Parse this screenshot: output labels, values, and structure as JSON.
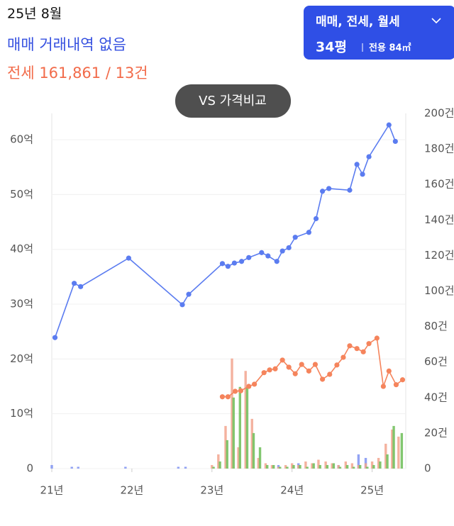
{
  "header": {
    "month": "25년 8월",
    "sale": "매매 거래내역 없음",
    "jeonse": "전세 161,861 / 13건"
  },
  "filter": {
    "types": "매매, 전세, 월세",
    "size": "34평",
    "area": "전용 84㎡"
  },
  "compare_button": "VS 가격비교",
  "chart_data": {
    "type": "line",
    "grid": true,
    "xlim": [
      2021,
      2025.42
    ],
    "xticks": [
      {
        "value": 2021,
        "label": "21년"
      },
      {
        "value": 2022,
        "label": "22년"
      },
      {
        "value": 2023,
        "label": "23년"
      },
      {
        "value": 2024,
        "label": "24년"
      },
      {
        "value": 2025,
        "label": "25년"
      }
    ],
    "ylim": [
      0,
      64.8
    ],
    "yticks": [
      0,
      {
        "value": 10,
        "label": "10억"
      },
      {
        "value": 20,
        "label": "20억"
      },
      {
        "value": 30,
        "label": "30억"
      },
      {
        "value": 40,
        "label": "40억"
      },
      {
        "value": 50,
        "label": "50억"
      },
      {
        "value": 60,
        "label": "60억"
      }
    ],
    "y2lim": [
      0,
      200
    ],
    "y2ticks": [
      0,
      {
        "value": 20,
        "label": "20건"
      },
      {
        "value": 40,
        "label": "40건"
      },
      {
        "value": 60,
        "label": "60건"
      },
      {
        "value": 80,
        "label": "80건"
      },
      {
        "value": 100,
        "label": "100건"
      },
      {
        "value": 120,
        "label": "120건"
      },
      {
        "value": 140,
        "label": "140건"
      },
      {
        "value": 160,
        "label": "160건"
      },
      {
        "value": 180,
        "label": "180건"
      },
      {
        "value": 200,
        "label": "200건"
      }
    ],
    "series": [
      {
        "type": "bar",
        "axis": "y2",
        "color": "#7f93f2",
        "x": [
          2021.0,
          2021.25,
          2021.33,
          2021.92,
          2022.58,
          2022.67,
          2023.83,
          2024.08,
          2024.58,
          2024.83,
          2024.92
        ],
        "values": [
          2,
          1,
          1,
          1,
          1,
          1,
          2,
          3,
          2,
          8,
          6
        ]
      },
      {
        "type": "bar",
        "axis": "y2",
        "color": "#f2a58e",
        "x": [
          2023.0,
          2023.08,
          2023.17,
          2023.25,
          2023.33,
          2023.42,
          2023.5,
          2023.58,
          2023.67,
          2023.75,
          2023.83,
          2023.92,
          2024.0,
          2024.08,
          2024.17,
          2024.25,
          2024.33,
          2024.42,
          2024.5,
          2024.58,
          2024.67,
          2024.75,
          2024.83,
          2024.92,
          2025.0,
          2025.08,
          2025.17,
          2025.25,
          2025.33
        ],
        "values": [
          2,
          8,
          24,
          62,
          12,
          55,
          28,
          6,
          3,
          2,
          1,
          2,
          3,
          2,
          4,
          3,
          5,
          4,
          3,
          2,
          4,
          3,
          2,
          3,
          4,
          6,
          14,
          22,
          18
        ]
      },
      {
        "type": "bar",
        "axis": "y2",
        "color": "#6cbd57",
        "x": [
          2023.02,
          2023.1,
          2023.19,
          2023.27,
          2023.35,
          2023.44,
          2023.52,
          2023.6,
          2023.69,
          2023.77,
          2023.85,
          2023.94,
          2024.02,
          2024.1,
          2024.19,
          2024.27,
          2024.35,
          2024.44,
          2024.52,
          2024.6,
          2024.69,
          2024.77,
          2024.85,
          2024.94,
          2025.02,
          2025.1,
          2025.19,
          2025.27,
          2025.37
        ],
        "values": [
          1,
          4,
          16,
          40,
          46,
          46,
          20,
          12,
          2,
          2,
          1,
          1,
          2,
          2,
          1,
          3,
          2,
          2,
          3,
          1,
          2,
          1,
          2,
          1,
          2,
          4,
          8,
          24,
          20
        ]
      },
      {
        "type": "line",
        "color": "#5b7cf0",
        "x": [
          2021.04,
          2021.28,
          2021.36,
          2021.96,
          2022.63,
          2022.71,
          2023.13,
          2023.2,
          2023.28,
          2023.37,
          2023.46,
          2023.62,
          2023.7,
          2023.81,
          2023.88,
          2023.96,
          2024.04,
          2024.21,
          2024.3,
          2024.38,
          2024.46,
          2024.72,
          2024.81,
          2024.88,
          2024.96,
          2025.21,
          2025.29
        ],
        "values": [
          23.9,
          33.8,
          33.2,
          38.4,
          29.9,
          31.8,
          37.4,
          36.9,
          37.5,
          37.8,
          38.5,
          39.4,
          38.8,
          37.8,
          39.7,
          40.3,
          42.2,
          43.1,
          45.6,
          50.6,
          51.1,
          50.8,
          55.5,
          53.7,
          56.9,
          62.7,
          59.7
        ]
      },
      {
        "type": "line",
        "color": "#f5845c",
        "x": [
          2023.13,
          2023.2,
          2023.29,
          2023.36,
          2023.46,
          2023.53,
          2023.65,
          2023.72,
          2023.79,
          2023.88,
          2023.96,
          2024.04,
          2024.12,
          2024.21,
          2024.29,
          2024.38,
          2024.47,
          2024.56,
          2024.64,
          2024.72,
          2024.81,
          2024.89,
          2024.96,
          2025.06,
          2025.14,
          2025.21,
          2025.3,
          2025.38
        ],
        "values": [
          13.1,
          13.1,
          14.1,
          14.2,
          15.0,
          15.4,
          17.5,
          18.0,
          18.2,
          19.8,
          18.5,
          17.3,
          19.0,
          17.8,
          19.0,
          16.3,
          17.2,
          18.9,
          20.3,
          22.4,
          21.9,
          21.3,
          22.8,
          23.8,
          15.0,
          17.8,
          15.3,
          16.2
        ]
      }
    ]
  }
}
